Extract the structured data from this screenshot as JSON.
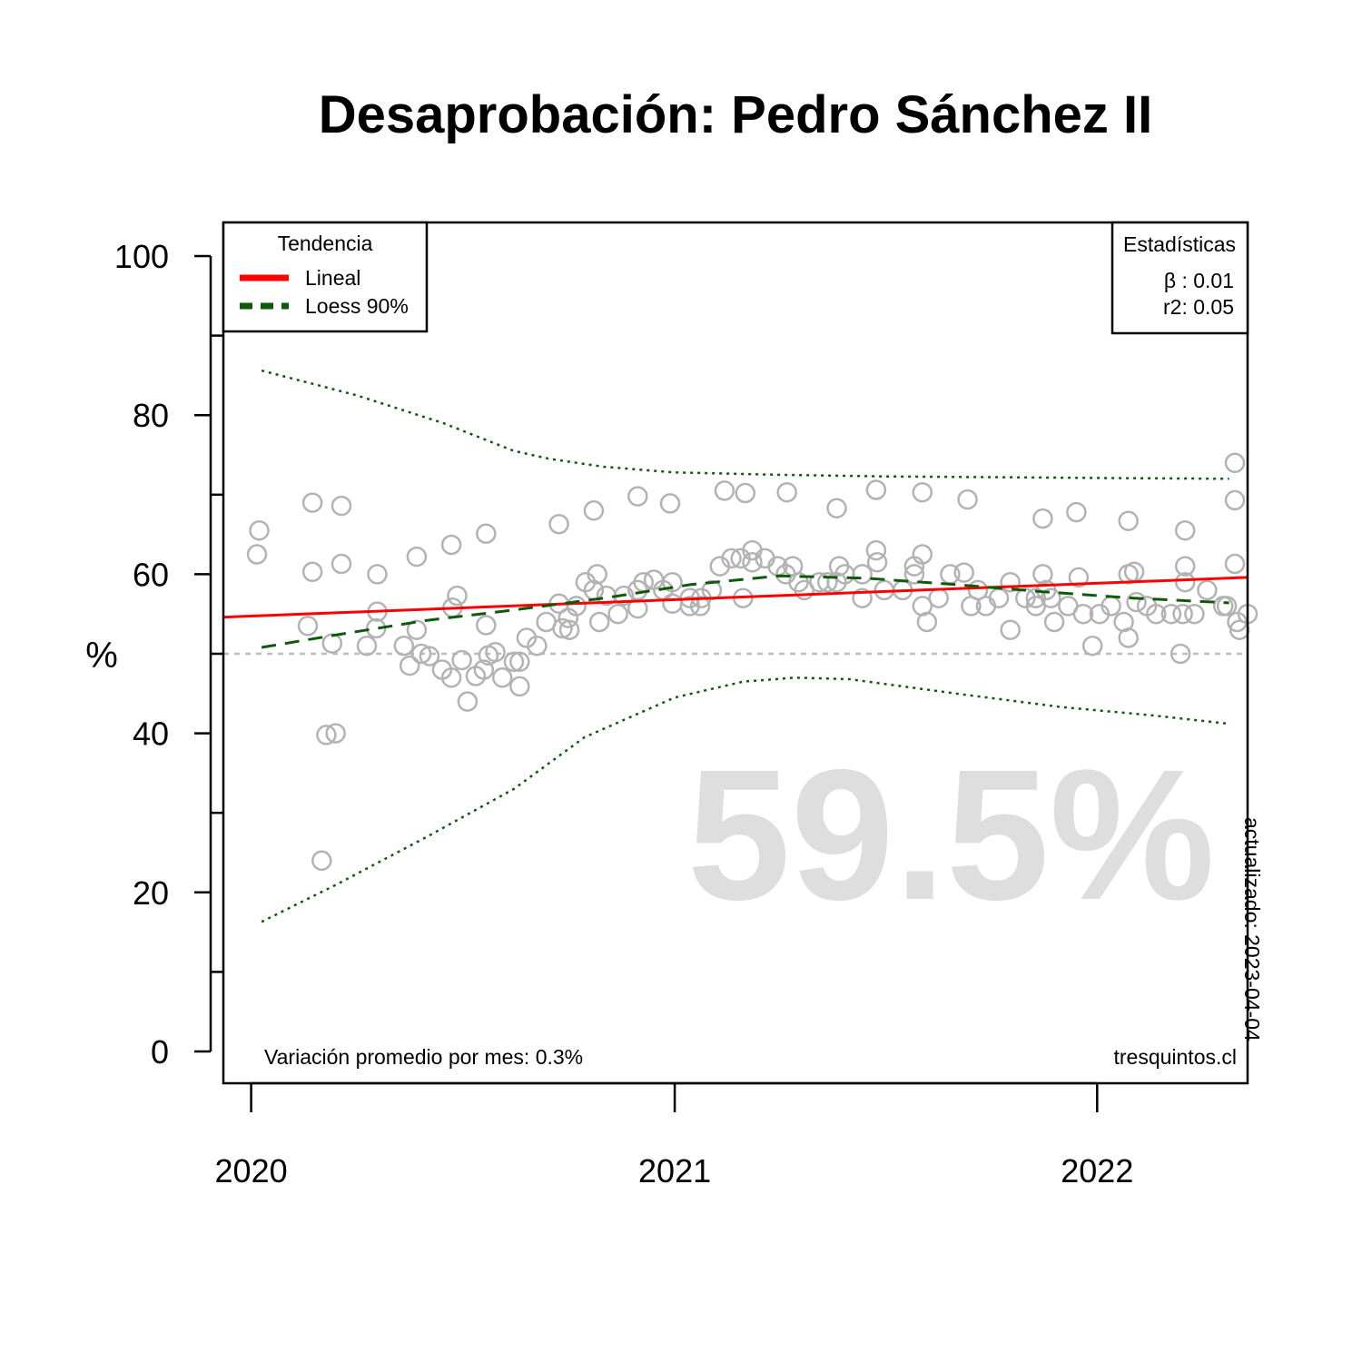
{
  "chart_data": {
    "type": "scatter",
    "title": "Desaprobación: Pedro Sánchez II",
    "ylabel": "%",
    "xlabel": "",
    "ylim": [
      0,
      100
    ],
    "xlim": [
      "2019-12-08",
      "2022-05-11"
    ],
    "y_ticks": [
      0,
      20,
      40,
      60,
      80,
      100
    ],
    "y_minor_ticks": [
      10,
      30,
      50,
      70,
      90
    ],
    "x_ticks": [
      {
        "date": "2020-01-01",
        "label": "2020"
      },
      {
        "date": "2021-01-01",
        "label": "2021"
      },
      {
        "date": "2022-01-01",
        "label": "2022"
      }
    ],
    "reference_line": 50,
    "big_value": "59.5%",
    "legend": {
      "title": "Tendencia",
      "position": "top-left",
      "items": [
        {
          "label": "Lineal",
          "color": "#ff0000",
          "style": "solid"
        },
        {
          "label": "Loess 90%",
          "color": "#0d5a0d",
          "style": "dashed"
        }
      ]
    },
    "stats": {
      "title": "Estadísticas",
      "position": "top-right",
      "lines": [
        "β : 0.01",
        "r2: 0.05"
      ]
    },
    "footer_left": "Variación promedio por mes: 0.3%",
    "footer_right": "tresquintos.cl",
    "updated": "actualizado: 2023-04-04",
    "colors": {
      "points": "#b3b3b3",
      "linear": "#ff0000",
      "loess": "#0d5a0d",
      "reference": "#bdbdbd",
      "big": "#dedede"
    },
    "linear_trend": [
      {
        "x": "2019-12-08",
        "y": 54.6
      },
      {
        "x": "2022-05-11",
        "y": 59.6
      }
    ],
    "loess": [
      {
        "x": "2020-01-10",
        "y": 50.8
      },
      {
        "x": "2020-03-20",
        "y": 52.5
      },
      {
        "x": "2020-06-01",
        "y": 54.2
      },
      {
        "x": "2020-08-15",
        "y": 55.5
      },
      {
        "x": "2020-11-01",
        "y": 57.0
      },
      {
        "x": "2021-01-15",
        "y": 58.7
      },
      {
        "x": "2021-04-01",
        "y": 59.8
      },
      {
        "x": "2021-06-15",
        "y": 59.5
      },
      {
        "x": "2021-09-01",
        "y": 58.7
      },
      {
        "x": "2021-11-15",
        "y": 57.8
      },
      {
        "x": "2022-02-01",
        "y": 57.0
      },
      {
        "x": "2022-04-25",
        "y": 56.4
      }
    ],
    "loess_upper": [
      {
        "x": "2020-01-10",
        "y": 85.6
      },
      {
        "x": "2020-04-01",
        "y": 82.5
      },
      {
        "x": "2020-06-15",
        "y": 79.0
      },
      {
        "x": "2020-08-15",
        "y": 75.5
      },
      {
        "x": "2020-09-15",
        "y": 74.5
      },
      {
        "x": "2020-11-01",
        "y": 73.5
      },
      {
        "x": "2021-01-01",
        "y": 72.8
      },
      {
        "x": "2021-04-01",
        "y": 72.5
      },
      {
        "x": "2021-07-01",
        "y": 72.3
      },
      {
        "x": "2021-10-01",
        "y": 72.2
      },
      {
        "x": "2022-01-01",
        "y": 72.1
      },
      {
        "x": "2022-04-25",
        "y": 72.0
      }
    ],
    "loess_lower": [
      {
        "x": "2020-01-10",
        "y": 16.3
      },
      {
        "x": "2020-03-15",
        "y": 21.0
      },
      {
        "x": "2020-06-01",
        "y": 27.0
      },
      {
        "x": "2020-08-15",
        "y": 33.0
      },
      {
        "x": "2020-10-15",
        "y": 39.5
      },
      {
        "x": "2021-01-01",
        "y": 44.5
      },
      {
        "x": "2021-03-01",
        "y": 46.5
      },
      {
        "x": "2021-04-15",
        "y": 47.0
      },
      {
        "x": "2021-06-01",
        "y": 46.8
      },
      {
        "x": "2021-09-01",
        "y": 45.0
      },
      {
        "x": "2021-12-01",
        "y": 43.3
      },
      {
        "x": "2022-02-15",
        "y": 42.3
      },
      {
        "x": "2022-04-25",
        "y": 41.2
      }
    ],
    "points": [
      {
        "x": "2020-01-06",
        "y": 62.5
      },
      {
        "x": "2020-01-08",
        "y": 65.5
      },
      {
        "x": "2020-02-19",
        "y": 53.5
      },
      {
        "x": "2020-02-23",
        "y": 60.3
      },
      {
        "x": "2020-02-23",
        "y": 69.0
      },
      {
        "x": "2020-03-06",
        "y": 39.8
      },
      {
        "x": "2020-03-02",
        "y": 24.0
      },
      {
        "x": "2020-03-11",
        "y": 51.3
      },
      {
        "x": "2020-03-14",
        "y": 40.0
      },
      {
        "x": "2020-03-19",
        "y": 68.6
      },
      {
        "x": "2020-03-19",
        "y": 61.3
      },
      {
        "x": "2020-04-10",
        "y": 51.0
      },
      {
        "x": "2020-04-18",
        "y": 53.2
      },
      {
        "x": "2020-04-19",
        "y": 60.0
      },
      {
        "x": "2020-04-19",
        "y": 55.3
      },
      {
        "x": "2020-05-12",
        "y": 51.0
      },
      {
        "x": "2020-05-17",
        "y": 48.5
      },
      {
        "x": "2020-05-23",
        "y": 62.2
      },
      {
        "x": "2020-05-23",
        "y": 53.0
      },
      {
        "x": "2020-05-27",
        "y": 50.0
      },
      {
        "x": "2020-06-03",
        "y": 49.7
      },
      {
        "x": "2020-06-14",
        "y": 48.0
      },
      {
        "x": "2020-06-22",
        "y": 47.0
      },
      {
        "x": "2020-06-22",
        "y": 63.7
      },
      {
        "x": "2020-06-23",
        "y": 55.8
      },
      {
        "x": "2020-06-27",
        "y": 57.3
      },
      {
        "x": "2020-07-01",
        "y": 49.2
      },
      {
        "x": "2020-07-06",
        "y": 44.0
      },
      {
        "x": "2020-07-13",
        "y": 47.2
      },
      {
        "x": "2020-07-20",
        "y": 48.0
      },
      {
        "x": "2020-07-22",
        "y": 53.6
      },
      {
        "x": "2020-07-22",
        "y": 65.1
      },
      {
        "x": "2020-07-24",
        "y": 49.8
      },
      {
        "x": "2020-07-30",
        "y": 50.2
      },
      {
        "x": "2020-08-05",
        "y": 47.0
      },
      {
        "x": "2020-08-15",
        "y": 49.0
      },
      {
        "x": "2020-08-20",
        "y": 45.9
      },
      {
        "x": "2020-08-20",
        "y": 49.0
      },
      {
        "x": "2020-08-26",
        "y": 52.0
      },
      {
        "x": "2020-09-04",
        "y": 51.0
      },
      {
        "x": "2020-09-12",
        "y": 54.0
      },
      {
        "x": "2020-09-23",
        "y": 66.3
      },
      {
        "x": "2020-09-23",
        "y": 56.3
      },
      {
        "x": "2020-09-26",
        "y": 53.2
      },
      {
        "x": "2020-10-01",
        "y": 54.5
      },
      {
        "x": "2020-10-02",
        "y": 53.0
      },
      {
        "x": "2020-10-08",
        "y": 56.0
      },
      {
        "x": "2020-10-16",
        "y": 59.0
      },
      {
        "x": "2020-10-23",
        "y": 58.0
      },
      {
        "x": "2020-10-23",
        "y": 68.0
      },
      {
        "x": "2020-10-26",
        "y": 60.0
      },
      {
        "x": "2020-10-28",
        "y": 54.0
      },
      {
        "x": "2020-11-03",
        "y": 57.3
      },
      {
        "x": "2020-11-13",
        "y": 55.0
      },
      {
        "x": "2020-11-18",
        "y": 57.3
      },
      {
        "x": "2020-11-30",
        "y": 55.7
      },
      {
        "x": "2020-11-30",
        "y": 58.0
      },
      {
        "x": "2020-11-30",
        "y": 69.8
      },
      {
        "x": "2020-12-05",
        "y": 59.0
      },
      {
        "x": "2020-12-14",
        "y": 59.3
      },
      {
        "x": "2020-12-22",
        "y": 58.0
      },
      {
        "x": "2020-12-28",
        "y": 68.9
      },
      {
        "x": "2020-12-30",
        "y": 59.0
      },
      {
        "x": "2020-12-30",
        "y": 56.3
      },
      {
        "x": "2021-01-14",
        "y": 57.0
      },
      {
        "x": "2021-01-14",
        "y": 56.0
      },
      {
        "x": "2021-01-23",
        "y": 56.0
      },
      {
        "x": "2021-01-24",
        "y": 57.0
      },
      {
        "x": "2021-02-02",
        "y": 58.0
      },
      {
        "x": "2021-02-09",
        "y": 61.0
      },
      {
        "x": "2021-02-13",
        "y": 70.5
      },
      {
        "x": "2021-02-19",
        "y": 62.0
      },
      {
        "x": "2021-02-27",
        "y": 62.0
      },
      {
        "x": "2021-03-01",
        "y": 57.0
      },
      {
        "x": "2021-03-03",
        "y": 70.2
      },
      {
        "x": "2021-03-09",
        "y": 63.0
      },
      {
        "x": "2021-03-09",
        "y": 61.5
      },
      {
        "x": "2021-03-20",
        "y": 62.0
      },
      {
        "x": "2021-03-31",
        "y": 61.0
      },
      {
        "x": "2021-04-07",
        "y": 60.0
      },
      {
        "x": "2021-04-08",
        "y": 70.3
      },
      {
        "x": "2021-04-13",
        "y": 61.0
      },
      {
        "x": "2021-04-18",
        "y": 59.0
      },
      {
        "x": "2021-04-23",
        "y": 58.0
      },
      {
        "x": "2021-05-06",
        "y": 59.0
      },
      {
        "x": "2021-05-13",
        "y": 59.0
      },
      {
        "x": "2021-05-21",
        "y": 68.3
      },
      {
        "x": "2021-05-21",
        "y": 59.0
      },
      {
        "x": "2021-05-23",
        "y": 61.0
      },
      {
        "x": "2021-05-28",
        "y": 60.0
      },
      {
        "x": "2021-06-12",
        "y": 60.0
      },
      {
        "x": "2021-06-12",
        "y": 57.0
      },
      {
        "x": "2021-06-24",
        "y": 63.0
      },
      {
        "x": "2021-06-24",
        "y": 70.6
      },
      {
        "x": "2021-06-25",
        "y": 61.5
      },
      {
        "x": "2021-07-01",
        "y": 58.0
      },
      {
        "x": "2021-07-17",
        "y": 58.0
      },
      {
        "x": "2021-07-27",
        "y": 61.0
      },
      {
        "x": "2021-07-27",
        "y": 60.0
      },
      {
        "x": "2021-08-03",
        "y": 70.3
      },
      {
        "x": "2021-08-03",
        "y": 62.5
      },
      {
        "x": "2021-08-03",
        "y": 56.0
      },
      {
        "x": "2021-08-07",
        "y": 54.0
      },
      {
        "x": "2021-08-17",
        "y": 57.0
      },
      {
        "x": "2021-08-27",
        "y": 60.0
      },
      {
        "x": "2021-09-08",
        "y": 60.2
      },
      {
        "x": "2021-09-11",
        "y": 69.4
      },
      {
        "x": "2021-09-14",
        "y": 56.0
      },
      {
        "x": "2021-09-20",
        "y": 58.0
      },
      {
        "x": "2021-09-27",
        "y": 56.0
      },
      {
        "x": "2021-10-08",
        "y": 57.0
      },
      {
        "x": "2021-10-18",
        "y": 59.0
      },
      {
        "x": "2021-10-18",
        "y": 53.0
      },
      {
        "x": "2021-10-31",
        "y": 57.0
      },
      {
        "x": "2021-11-09",
        "y": 57.0
      },
      {
        "x": "2021-11-09",
        "y": 56.0
      },
      {
        "x": "2021-11-15",
        "y": 67.0
      },
      {
        "x": "2021-11-15",
        "y": 60.0
      },
      {
        "x": "2021-11-18",
        "y": 58.0
      },
      {
        "x": "2021-11-22",
        "y": 57.0
      },
      {
        "x": "2021-11-25",
        "y": 54.0
      },
      {
        "x": "2021-12-07",
        "y": 56.0
      },
      {
        "x": "2021-12-14",
        "y": 67.8
      },
      {
        "x": "2021-12-16",
        "y": 59.6
      },
      {
        "x": "2021-12-20",
        "y": 55.0
      },
      {
        "x": "2021-12-28",
        "y": 51.0
      },
      {
        "x": "2022-01-03",
        "y": 55.0
      },
      {
        "x": "2022-01-13",
        "y": 56.0
      },
      {
        "x": "2022-01-24",
        "y": 54.0
      },
      {
        "x": "2022-01-28",
        "y": 52.0
      },
      {
        "x": "2022-01-28",
        "y": 60.0
      },
      {
        "x": "2022-01-28",
        "y": 66.7
      },
      {
        "x": "2022-02-02",
        "y": 60.3
      },
      {
        "x": "2022-02-04",
        "y": 56.5
      },
      {
        "x": "2022-02-13",
        "y": 56.0
      },
      {
        "x": "2022-02-21",
        "y": 55.0
      },
      {
        "x": "2022-03-06",
        "y": 55.0
      },
      {
        "x": "2022-03-14",
        "y": 50.0
      },
      {
        "x": "2022-03-16",
        "y": 55.0
      },
      {
        "x": "2022-03-18",
        "y": 59.0
      },
      {
        "x": "2022-03-18",
        "y": 65.5
      },
      {
        "x": "2022-03-18",
        "y": 61.0
      },
      {
        "x": "2022-03-26",
        "y": 55.0
      },
      {
        "x": "2022-04-06",
        "y": 58.0
      },
      {
        "x": "2022-04-20",
        "y": 56.0
      },
      {
        "x": "2022-04-23",
        "y": 56.0
      },
      {
        "x": "2022-04-30",
        "y": 61.3
      },
      {
        "x": "2022-04-30",
        "y": 74.0
      },
      {
        "x": "2022-04-30",
        "y": 69.3
      },
      {
        "x": "2022-05-02",
        "y": 54.0
      },
      {
        "x": "2022-05-04",
        "y": 53.0
      },
      {
        "x": "2022-05-11",
        "y": 55.0
      }
    ]
  }
}
